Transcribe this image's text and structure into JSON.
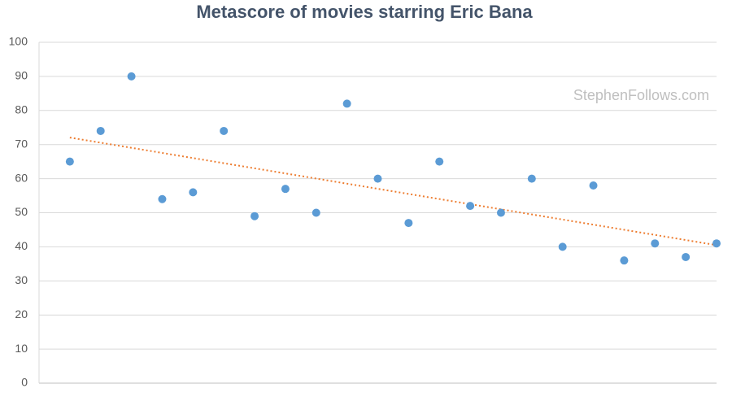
{
  "chart_data": {
    "type": "scatter",
    "title": "Metascore of movies starring Eric Bana",
    "watermark": "StephenFollows.com",
    "x": [
      1,
      2,
      3,
      4,
      5,
      6,
      7,
      8,
      9,
      10,
      11,
      12,
      13,
      14,
      15,
      16,
      17,
      18,
      19,
      20,
      21,
      22
    ],
    "series": [
      {
        "color": "#5b9bd5",
        "values": [
          65,
          74,
          90,
          54,
          56,
          74,
          49,
          57,
          50,
          82,
          60,
          47,
          65,
          52,
          50,
          60,
          40,
          58,
          36,
          41,
          37,
          41
        ]
      }
    ],
    "xlim": [
      0,
      22
    ],
    "ylim": [
      0,
      100
    ],
    "yticks": [
      0,
      10,
      20,
      30,
      40,
      50,
      60,
      70,
      80,
      90,
      100
    ],
    "grid": true,
    "trendline": {
      "type": "linear",
      "color": "#ed7d31"
    }
  }
}
